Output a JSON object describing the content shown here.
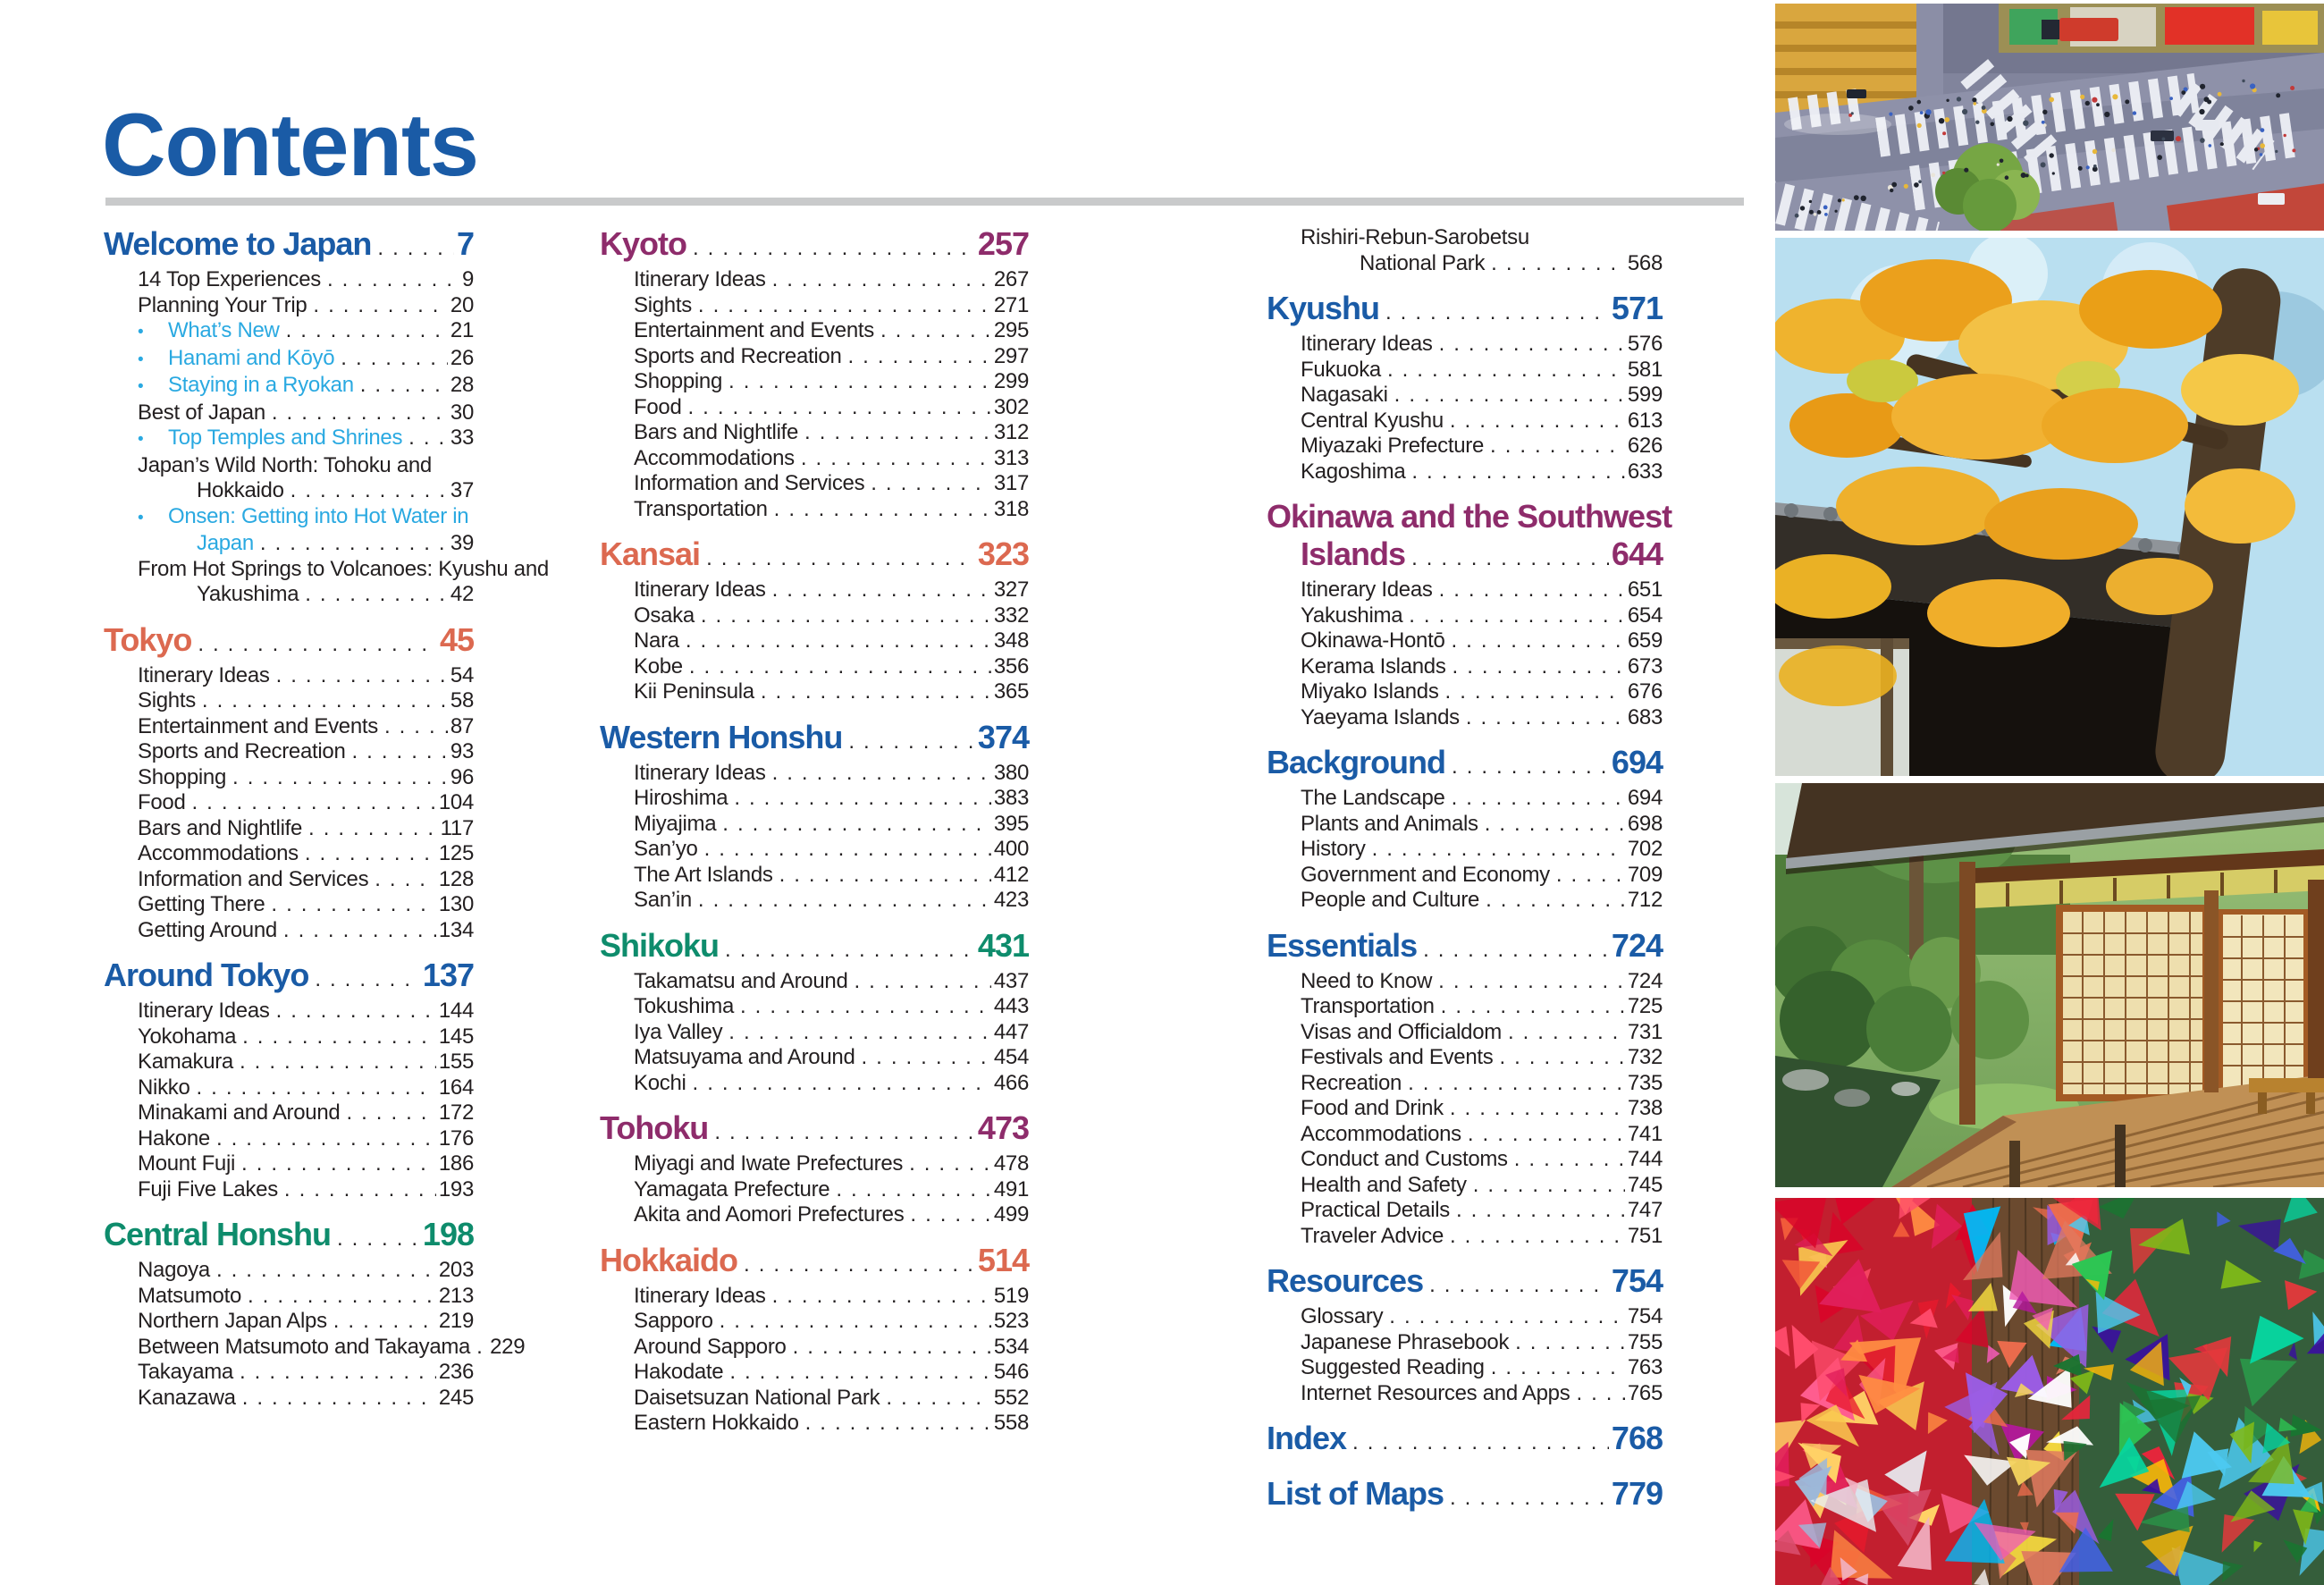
{
  "page": {
    "title": "Contents"
  },
  "colors": {
    "heading_blue": "#1a5ba6",
    "section_orange": "#dc6950",
    "section_green": "#0e8c6c",
    "section_purple": "#8e2c6b",
    "subentry_lightblue": "#2aa9e1",
    "body_text": "#231f20",
    "rule_gray": "#c9cacb"
  },
  "toc": {
    "columns": [
      {
        "sections": [
          {
            "title": "Welcome to Japan",
            "page": "7",
            "color": "blue",
            "entries": [
              {
                "label": "14 Top Experiences",
                "page": "9"
              },
              {
                "label": "Planning Your Trip",
                "page": "20"
              },
              {
                "label": "What’s New",
                "page": "21",
                "bullet": true,
                "hl": true
              },
              {
                "label": "Hanami and Kōyō",
                "page": "26",
                "bullet": true,
                "hl": true
              },
              {
                "label": "Staying in a Ryokan",
                "page": "28",
                "bullet": true,
                "hl": true
              },
              {
                "label": "Best of Japan",
                "page": "30"
              },
              {
                "label": "Top Temples and Shrines",
                "page": "33",
                "bullet": true,
                "hl": true
              },
              {
                "pre": "Japan’s Wild North: Tohoku and",
                "label": "Hokkaido",
                "page": "37"
              },
              {
                "pre": "Onsen: Getting into Hot Water in",
                "label": "Japan",
                "page": "39",
                "bullet": true,
                "hl": true
              },
              {
                "pre": "From Hot Springs to Volcanoes: Kyushu and",
                "label": "Yakushima",
                "page": "42"
              }
            ]
          },
          {
            "title": "Tokyo",
            "page": "45",
            "color": "orange",
            "entries": [
              {
                "label": "Itinerary Ideas",
                "page": "54"
              },
              {
                "label": "Sights",
                "page": "58"
              },
              {
                "label": "Entertainment and Events",
                "page": "87"
              },
              {
                "label": "Sports and Recreation",
                "page": "93"
              },
              {
                "label": "Shopping",
                "page": "96"
              },
              {
                "label": "Food",
                "page": "104"
              },
              {
                "label": "Bars and Nightlife",
                "page": "117"
              },
              {
                "label": "Accommodations",
                "page": "125"
              },
              {
                "label": "Information and Services",
                "page": "128"
              },
              {
                "label": "Getting There",
                "page": "130"
              },
              {
                "label": "Getting Around",
                "page": "134"
              }
            ]
          },
          {
            "title": "Around Tokyo",
            "page": "137",
            "color": "blue",
            "entries": [
              {
                "label": "Itinerary Ideas",
                "page": "144"
              },
              {
                "label": "Yokohama",
                "page": "145"
              },
              {
                "label": "Kamakura",
                "page": "155"
              },
              {
                "label": "Nikko",
                "page": "164"
              },
              {
                "label": "Minakami and Around",
                "page": "172"
              },
              {
                "label": "Hakone",
                "page": "176"
              },
              {
                "label": "Mount Fuji",
                "page": "186"
              },
              {
                "label": "Fuji Five Lakes",
                "page": "193"
              }
            ]
          },
          {
            "title": "Central Honshu",
            "page": "198",
            "color": "green",
            "entries": [
              {
                "label": "Nagoya",
                "page": "203"
              },
              {
                "label": "Matsumoto",
                "page": "213"
              },
              {
                "label": "Northern Japan Alps",
                "page": "219"
              },
              {
                "label": "Between Matsumoto and Takayama",
                "page": "229"
              },
              {
                "label": "Takayama",
                "page": "236"
              },
              {
                "label": "Kanazawa",
                "page": "245"
              }
            ]
          }
        ]
      },
      {
        "sections": [
          {
            "title": "Kyoto",
            "page": "257",
            "color": "purple",
            "entries": [
              {
                "label": "Itinerary Ideas",
                "page": "267"
              },
              {
                "label": "Sights",
                "page": "271"
              },
              {
                "label": "Entertainment and Events",
                "page": "295"
              },
              {
                "label": "Sports and Recreation",
                "page": "297"
              },
              {
                "label": "Shopping",
                "page": "299"
              },
              {
                "label": "Food",
                "page": "302"
              },
              {
                "label": "Bars and Nightlife",
                "page": "312"
              },
              {
                "label": "Accommodations",
                "page": "313"
              },
              {
                "label": "Information and Services",
                "page": "317"
              },
              {
                "label": "Transportation",
                "page": "318"
              }
            ]
          },
          {
            "title": "Kansai",
            "page": "323",
            "color": "orange",
            "entries": [
              {
                "label": "Itinerary Ideas",
                "page": "327"
              },
              {
                "label": "Osaka",
                "page": "332"
              },
              {
                "label": "Nara",
                "page": "348"
              },
              {
                "label": "Kobe",
                "page": "356"
              },
              {
                "label": "Kii Peninsula",
                "page": "365"
              }
            ]
          },
          {
            "title": "Western Honshu",
            "page": "374",
            "color": "blue",
            "entries": [
              {
                "label": "Itinerary Ideas",
                "page": "380"
              },
              {
                "label": "Hiroshima",
                "page": "383"
              },
              {
                "label": "Miyajima",
                "page": "395"
              },
              {
                "label": "San’yo",
                "page": "400"
              },
              {
                "label": "The Art Islands",
                "page": "412"
              },
              {
                "label": "San’in",
                "page": "423"
              }
            ]
          },
          {
            "title": "Shikoku",
            "page": "431",
            "color": "green",
            "entries": [
              {
                "label": "Takamatsu and Around",
                "page": "437"
              },
              {
                "label": "Tokushima",
                "page": "443"
              },
              {
                "label": "Iya Valley",
                "page": "447"
              },
              {
                "label": "Matsuyama and Around",
                "page": "454"
              },
              {
                "label": "Kochi",
                "page": "466"
              }
            ]
          },
          {
            "title": "Tohoku",
            "page": "473",
            "color": "purple",
            "entries": [
              {
                "label": "Miyagi and Iwate Prefectures",
                "page": "478"
              },
              {
                "label": "Yamagata Prefecture",
                "page": "491"
              },
              {
                "label": "Akita and Aomori Prefectures",
                "page": "499"
              }
            ]
          },
          {
            "title": "Hokkaido",
            "page": "514",
            "color": "orange",
            "entries": [
              {
                "label": "Itinerary Ideas",
                "page": "519"
              },
              {
                "label": "Sapporo",
                "page": "523"
              },
              {
                "label": "Around Sapporo",
                "page": "534"
              },
              {
                "label": "Hakodate",
                "page": "546"
              },
              {
                "label": "Daisetsuzan National Park",
                "page": "552"
              },
              {
                "label": "Eastern Hokkaido",
                "page": "558"
              }
            ]
          }
        ]
      },
      {
        "sections": [
          {
            "entries": [
              {
                "pre": "Rishiri-Rebun-Sarobetsu",
                "label": "National Park",
                "page": "568"
              }
            ]
          },
          {
            "title": "Kyushu",
            "page": "571",
            "color": "blue",
            "entries": [
              {
                "label": "Itinerary Ideas",
                "page": "576"
              },
              {
                "label": "Fukuoka",
                "page": "581"
              },
              {
                "label": "Nagasaki",
                "page": "599"
              },
              {
                "label": "Central Kyushu",
                "page": "613"
              },
              {
                "label": "Miyazaki Prefecture",
                "page": "626"
              },
              {
                "label": "Kagoshima",
                "page": "633"
              }
            ]
          },
          {
            "title": "Okinawa and the Southwest",
            "title2": "Islands",
            "page": "644",
            "color": "purple",
            "entries": [
              {
                "label": "Itinerary Ideas",
                "page": "651"
              },
              {
                "label": "Yakushima",
                "page": "654"
              },
              {
                "label": "Okinawa-Hontō",
                "page": "659"
              },
              {
                "label": "Kerama Islands",
                "page": "673"
              },
              {
                "label": "Miyako Islands",
                "page": "676"
              },
              {
                "label": "Yaeyama Islands",
                "page": "683"
              }
            ]
          },
          {
            "title": "Background",
            "page": "694",
            "color": "blue",
            "entries": [
              {
                "label": "The Landscape",
                "page": "694"
              },
              {
                "label": "Plants and Animals",
                "page": "698"
              },
              {
                "label": "History",
                "page": "702"
              },
              {
                "label": "Government and Economy",
                "page": "709"
              },
              {
                "label": "People and Culture",
                "page": "712"
              }
            ]
          },
          {
            "title": "Essentials",
            "page": "724",
            "color": "blue",
            "entries": [
              {
                "label": "Need to Know",
                "page": "724"
              },
              {
                "label": "Transportation",
                "page": "725"
              },
              {
                "label": "Visas and Officialdom",
                "page": "731"
              },
              {
                "label": "Festivals and Events",
                "page": "732"
              },
              {
                "label": "Recreation",
                "page": "735"
              },
              {
                "label": "Food and Drink",
                "page": "738"
              },
              {
                "label": "Accommodations",
                "page": "741"
              },
              {
                "label": "Conduct and Customs",
                "page": "744"
              },
              {
                "label": "Health and Safety",
                "page": "745"
              },
              {
                "label": "Practical Details",
                "page": "747"
              },
              {
                "label": "Traveler Advice",
                "page": "751"
              }
            ]
          },
          {
            "title": "Resources",
            "page": "754",
            "color": "blue",
            "entries": [
              {
                "label": "Glossary",
                "page": "754"
              },
              {
                "label": "Japanese Phrasebook",
                "page": "755"
              },
              {
                "label": "Suggested Reading",
                "page": "763"
              },
              {
                "label": "Internet Resources and Apps",
                "page": "765"
              }
            ]
          },
          {
            "title": "Index",
            "page": "768",
            "color": "blue",
            "entries": []
          },
          {
            "title": "List of Maps",
            "page": "779",
            "color": "blue",
            "entries": []
          }
        ]
      }
    ]
  },
  "photos": [
    {
      "id": "shibuya-crossing",
      "description": "Aerial view of a busy scramble crossing at dusk with zebra crosswalks and crowds"
    },
    {
      "id": "autumn-maple-temple-roof",
      "description": "Golden autumn maple leaves over a dark tiled temple roof"
    },
    {
      "id": "temple-veranda-garden",
      "description": "Wooden temple veranda with shoji screens beside a lush green garden"
    },
    {
      "id": "origami-paper-cranes",
      "description": "Dense strings of colorful folded origami paper cranes"
    }
  ]
}
